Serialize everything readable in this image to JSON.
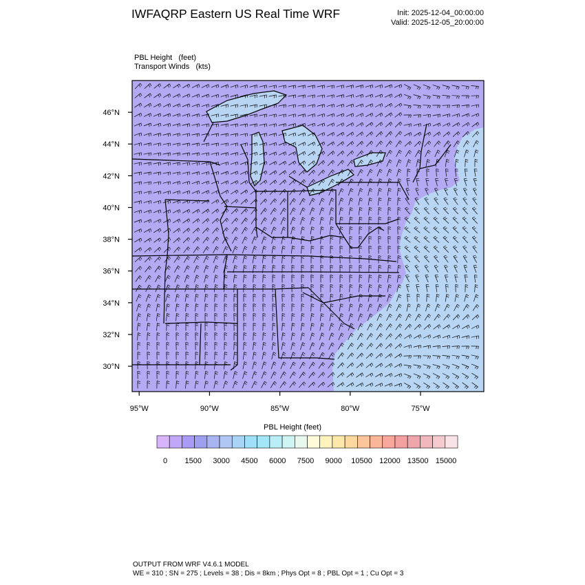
{
  "header": {
    "title": "IWFAQRP Eastern US Real Time WRF",
    "init": "Init: 2025-12-04_00:00:00",
    "valid": "Valid: 2025-12-05_20:00:00"
  },
  "fields": {
    "primary_name": "PBL Height",
    "primary_units": "(feet)",
    "secondary_name": "Transport Winds",
    "secondary_units": "(kts)"
  },
  "map": {
    "lat_labels": [
      "46°N",
      "44°N",
      "42°N",
      "40°N",
      "38°N",
      "36°N",
      "34°N",
      "32°N",
      "30°N"
    ],
    "lat_values": [
      46,
      44,
      42,
      40,
      38,
      36,
      34,
      32,
      30
    ],
    "lon_labels": [
      "95°W",
      "90°W",
      "85°W",
      "80°W",
      "75°W"
    ],
    "lon_values": [
      -95,
      -90,
      -85,
      -80,
      -75
    ],
    "extent": {
      "lon_min": -95.5,
      "lon_max": -70.5,
      "lat_min": 28.4,
      "lat_max": 48.0
    },
    "colors": {
      "land": "#b3aaf3",
      "ocean": "#b8d6f3",
      "border": "#000000"
    }
  },
  "colorbar": {
    "title": "PBL Height  (feet)",
    "labels": [
      "0",
      "1500",
      "3000",
      "4500",
      "6000",
      "7500",
      "9000",
      "10500",
      "12000",
      "13500",
      "15000"
    ],
    "label_values": [
      0,
      1500,
      3000,
      4500,
      6000,
      7500,
      9000,
      10500,
      12000,
      13500,
      15000
    ],
    "colors": [
      "#d8b4fb",
      "#c1a7f8",
      "#a99af5",
      "#9f9ff0",
      "#a8b5f0",
      "#b0c6f3",
      "#a9d4f5",
      "#9fdff8",
      "#a3e6f8",
      "#b9eef6",
      "#cef4f3",
      "#e8f8ef",
      "#fffbd8",
      "#fff3bd",
      "#fde8aa",
      "#fbd8a0",
      "#fbc69b",
      "#fbb69a",
      "#f9a69b",
      "#f49fa0",
      "#eea6ac",
      "#f1b7bd",
      "#f5cbd0",
      "#fae3e6"
    ]
  },
  "footer": {
    "line1": "OUTPUT FROM WRF V4.6.1 MODEL",
    "line2": "WE = 310 ; SN = 275 ; Levels = 38 ; Dis = 8km ; Phys Opt = 8 ; PBL Opt = 1 ; Cu Opt = 3"
  }
}
